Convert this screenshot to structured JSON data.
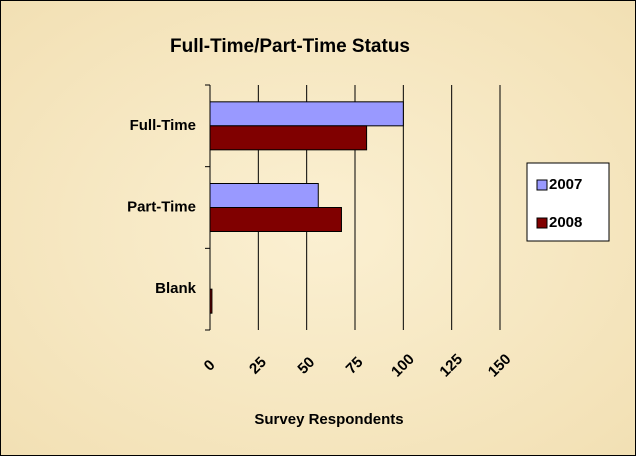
{
  "chart_data": {
    "type": "hbar",
    "title": "Full-Time/Part-Time Status",
    "xlabel": "Survey Respondents",
    "categories": [
      "Full-Time",
      "Part-Time",
      "Blank"
    ],
    "series": [
      {
        "name": "2007",
        "color": "#9999ff",
        "values": [
          100,
          56,
          0
        ]
      },
      {
        "name": "2008",
        "color": "#800000",
        "values": [
          81,
          68,
          1
        ]
      }
    ],
    "xlim": [
      0,
      150
    ],
    "xticks": [
      0,
      25,
      50,
      75,
      100,
      125,
      150
    ],
    "grid": true,
    "legend": "right"
  }
}
